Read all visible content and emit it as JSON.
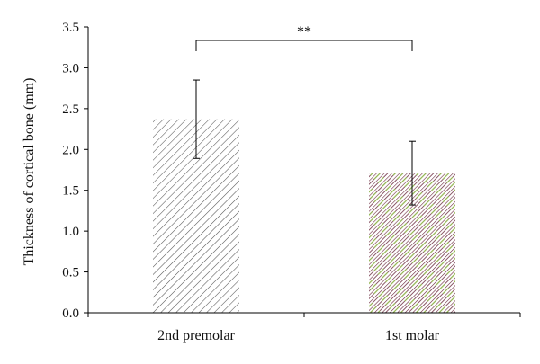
{
  "chart_data": {
    "type": "bar",
    "ylabel": "Thickness of cortical bone (mm)",
    "xlabel": "",
    "title": "",
    "ylim": [
      0,
      3.5
    ],
    "yticks": [
      "0.0",
      "0.5",
      "1.0",
      "1.5",
      "2.0",
      "2.5",
      "3.0",
      "3.5"
    ],
    "categories": [
      "2nd premolar",
      "1st molar"
    ],
    "values": [
      2.37,
      1.71
    ],
    "error_plus": [
      0.48,
      0.39
    ],
    "error_minus": [
      0.48,
      0.39
    ],
    "significance": {
      "between": [
        0,
        1
      ],
      "label": "**"
    },
    "bar_patterns": [
      {
        "hatch": "diagonal",
        "colors": [
          "#555555"
        ]
      },
      {
        "hatch": "diagonal",
        "colors": [
          "#6b2a3e",
          "#7fa33a"
        ]
      }
    ],
    "grid": false
  }
}
